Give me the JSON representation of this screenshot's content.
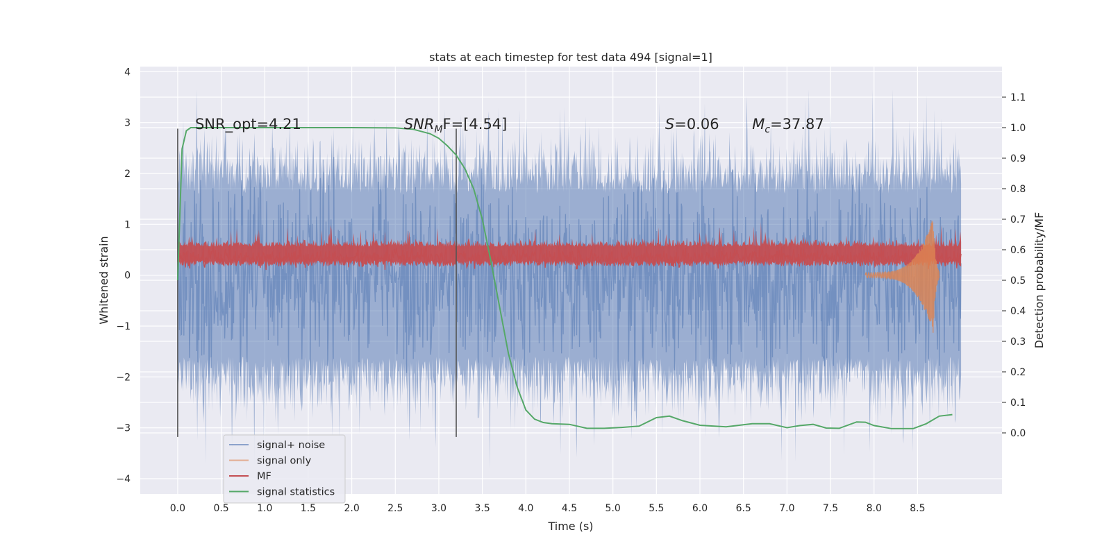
{
  "chart_data": {
    "type": "line",
    "title": "stats at each timestep for test data 494 [signal=1]",
    "xlabel": "Time (s)",
    "ylabel": "Whitened strain",
    "ylabel_right": "Detection probability/MF",
    "xlim": [
      -0.43,
      9.47
    ],
    "ylim": [
      -4.3,
      4.1
    ],
    "ylim_right": [
      -0.2,
      1.2
    ],
    "x_ticks": [
      0.0,
      0.5,
      1.0,
      1.5,
      2.0,
      2.5,
      3.0,
      3.5,
      4.0,
      4.5,
      5.0,
      5.5,
      6.0,
      6.5,
      7.0,
      7.5,
      8.0,
      8.5
    ],
    "x_tick_labels": [
      "0.0",
      "0.5",
      "1.0",
      "1.5",
      "2.0",
      "2.5",
      "3.0",
      "3.5",
      "4.0",
      "4.5",
      "5.0",
      "5.5",
      "6.0",
      "6.5",
      "7.0",
      "7.5",
      "8.0",
      "8.5"
    ],
    "y_ticks": [
      -4,
      -3,
      -2,
      -1,
      0,
      1,
      2,
      3,
      4
    ],
    "y_tick_labels": [
      "−4",
      "−3",
      "−2",
      "−1",
      "0",
      "1",
      "2",
      "3",
      "4"
    ],
    "y_right_ticks": [
      0.0,
      0.1,
      0.2,
      0.3,
      0.4,
      0.5,
      0.6,
      0.7,
      0.8,
      0.9,
      1.0,
      1.1
    ],
    "y_right_tick_labels": [
      "0.0",
      "0.1",
      "0.2",
      "0.3",
      "0.4",
      "0.5",
      "0.6",
      "0.7",
      "0.8",
      "0.9",
      "1.0",
      "1.1"
    ],
    "grid": true,
    "legend_position": "lower-left",
    "series": [
      {
        "name": "signal+ noise",
        "color": "#4c72b0",
        "axis": "left",
        "style": "dense noise spanning roughly -3.9 to 3.6 over t = 0.0 to 9.0 s"
      },
      {
        "name": "signal only",
        "color": "#dd8452",
        "axis": "left",
        "style": "near zero, chirp rising near t = 8.0 to 8.7 s, minimum about -1.1 at t = 8.66 s"
      },
      {
        "name": "MF",
        "color": "#c44e52",
        "axis": "right",
        "style": "noisy band around 0.6 (detection axis), spikes up to about 0.67"
      },
      {
        "name": "signal statistics",
        "color": "#55a868",
        "axis": "right",
        "x": [
          0.0,
          0.05,
          0.1,
          0.15,
          0.2,
          0.3,
          0.5,
          1.0,
          1.5,
          2.0,
          2.5,
          2.7,
          2.9,
          3.0,
          3.1,
          3.2,
          3.3,
          3.4,
          3.5,
          3.6,
          3.7,
          3.8,
          3.9,
          4.0,
          4.1,
          4.2,
          4.3,
          4.5,
          4.7,
          4.9,
          5.1,
          5.3,
          5.5,
          5.65,
          5.8,
          6.0,
          6.3,
          6.6,
          6.8,
          7.0,
          7.15,
          7.3,
          7.45,
          7.6,
          7.8,
          7.9,
          8.0,
          8.2,
          8.45,
          8.6,
          8.75,
          8.9
        ],
        "y": [
          0.5,
          0.93,
          0.99,
          1.0,
          1.0,
          1.0,
          1.0,
          1.0,
          1.0,
          1.0,
          0.999,
          0.995,
          0.98,
          0.965,
          0.94,
          0.91,
          0.865,
          0.8,
          0.7,
          0.56,
          0.41,
          0.26,
          0.15,
          0.075,
          0.045,
          0.034,
          0.03,
          0.028,
          0.015,
          0.015,
          0.018,
          0.022,
          0.05,
          0.055,
          0.04,
          0.025,
          0.02,
          0.03,
          0.03,
          0.017,
          0.024,
          0.028,
          0.016,
          0.015,
          0.036,
          0.035,
          0.024,
          0.014,
          0.014,
          0.03,
          0.055,
          0.06
        ]
      }
    ],
    "vlines": [
      0.0,
      3.2
    ],
    "annotations": [
      {
        "text": "SNR_opt=4.21",
        "x": 0.2,
        "y": 0.995
      },
      {
        "text": "SNR",
        "sub": "M",
        "rest": "F=[4.54]",
        "x": 2.6,
        "y": 0.995
      },
      {
        "text": "S",
        "rest": "=0.06",
        "x": 5.6,
        "y": 0.995
      },
      {
        "text": "M",
        "sub": "c",
        "rest": "=37.87",
        "x": 6.6,
        "y": 0.995
      }
    ]
  }
}
